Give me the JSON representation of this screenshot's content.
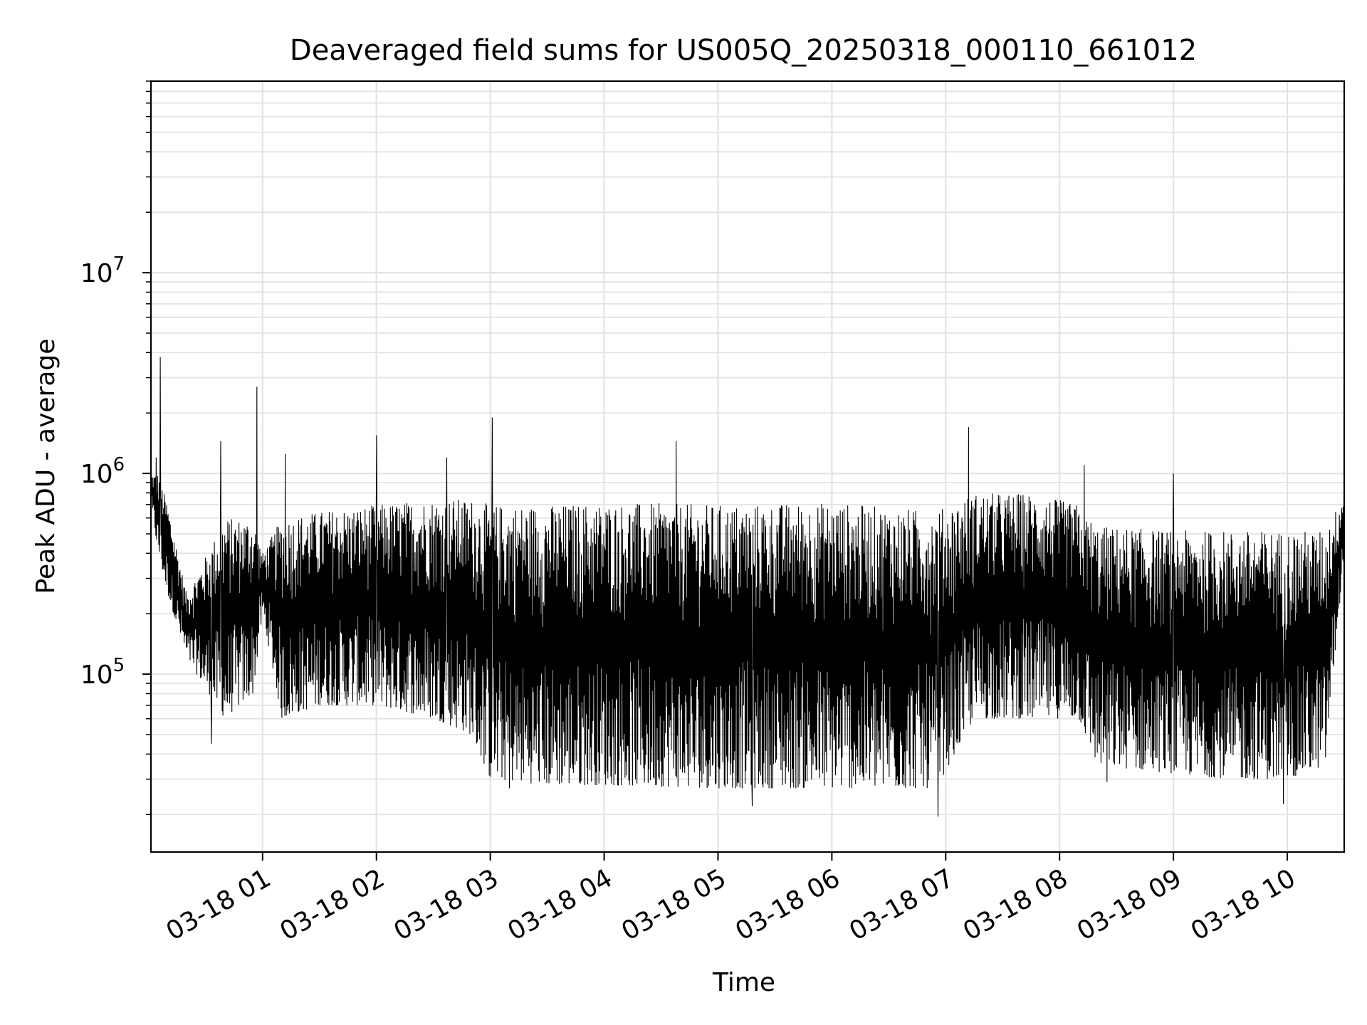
{
  "chart_data": {
    "type": "line",
    "title": "Deaveraged field sums for US005Q_20250318_000110_661012",
    "xlabel": "Time",
    "ylabel": "Peak ADU - average",
    "yscale": "log",
    "ylim": [
      13000,
      90000000
    ],
    "xlim": [
      "2025-03-18 00:01:10",
      "2025-03-18 10:30:00"
    ],
    "x_ticks": [
      "03-18 01",
      "03-18 02",
      "03-18 03",
      "03-18 04",
      "03-18 05",
      "03-18 06",
      "03-18 07",
      "03-18 08",
      "03-18 09",
      "03-18 10"
    ],
    "y_ticks": [
      {
        "base": "10",
        "exp": "5",
        "value": 100000
      },
      {
        "base": "10",
        "exp": "6",
        "value": 1000000
      },
      {
        "base": "10",
        "exp": "7",
        "value": 10000000
      }
    ],
    "grid": true,
    "line_color": "#000000",
    "series": [
      {
        "envelope": {
          "time": [
            "2025-03-18 00:01",
            "2025-03-18 00:05",
            "2025-03-18 00:10",
            "2025-03-18 00:20",
            "2025-03-18 00:40",
            "2025-03-18 00:55",
            "2025-03-18 01:00",
            "2025-03-18 01:10",
            "2025-03-18 01:30",
            "2025-03-18 02:00",
            "2025-03-18 02:30",
            "2025-03-18 02:50",
            "2025-03-18 03:00",
            "2025-03-18 03:30",
            "2025-03-18 04:00",
            "2025-03-18 05:00",
            "2025-03-18 06:00",
            "2025-03-18 06:55",
            "2025-03-18 07:15",
            "2025-03-18 07:45",
            "2025-03-18 08:10",
            "2025-03-18 08:20",
            "2025-03-18 09:00",
            "2025-03-18 09:30",
            "2025-03-18 10:00",
            "2025-03-18 10:20",
            "2025-03-18 10:30"
          ],
          "high": [
            1000000,
            1000000,
            700000,
            250000,
            600000,
            600000,
            400000,
            600000,
            650000,
            700000,
            750000,
            750000,
            700000,
            700000,
            720000,
            700000,
            720000,
            650000,
            800000,
            800000,
            700000,
            550000,
            520000,
            520000,
            520000,
            520000,
            800000
          ],
          "low": [
            700000,
            400000,
            250000,
            120000,
            60000,
            80000,
            200000,
            60000,
            70000,
            70000,
            60000,
            50000,
            30000,
            28000,
            28000,
            27000,
            27000,
            27000,
            60000,
            60000,
            60000,
            35000,
            32000,
            30000,
            30000,
            35000,
            400000
          ]
        },
        "spikes": [
          {
            "time": "2025-03-18 00:04",
            "value": 1200000
          },
          {
            "time": "2025-03-18 00:06",
            "value": 3800000
          },
          {
            "time": "2025-03-18 00:38",
            "value": 1450000
          },
          {
            "time": "2025-03-18 00:57",
            "value": 2700000
          },
          {
            "time": "2025-03-18 01:12",
            "value": 1250000
          },
          {
            "time": "2025-03-18 02:00",
            "value": 1550000
          },
          {
            "time": "2025-03-18 02:37",
            "value": 1200000
          },
          {
            "time": "2025-03-18 03:01",
            "value": 1900000
          },
          {
            "time": "2025-03-18 04:38",
            "value": 1450000
          },
          {
            "time": "2025-03-18 07:12",
            "value": 1700000
          },
          {
            "time": "2025-03-18 08:13",
            "value": 1100000
          },
          {
            "time": "2025-03-18 09:00",
            "value": 1000000
          }
        ],
        "dips": [
          {
            "time": "2025-03-18 00:33",
            "value": 45000
          },
          {
            "time": "2025-03-18 03:10",
            "value": 27000
          },
          {
            "time": "2025-03-18 05:18",
            "value": 22000
          },
          {
            "time": "2025-03-18 06:56",
            "value": 19500
          },
          {
            "time": "2025-03-18 08:25",
            "value": 29000
          },
          {
            "time": "2025-03-18 09:58",
            "value": 22500
          }
        ]
      }
    ]
  }
}
